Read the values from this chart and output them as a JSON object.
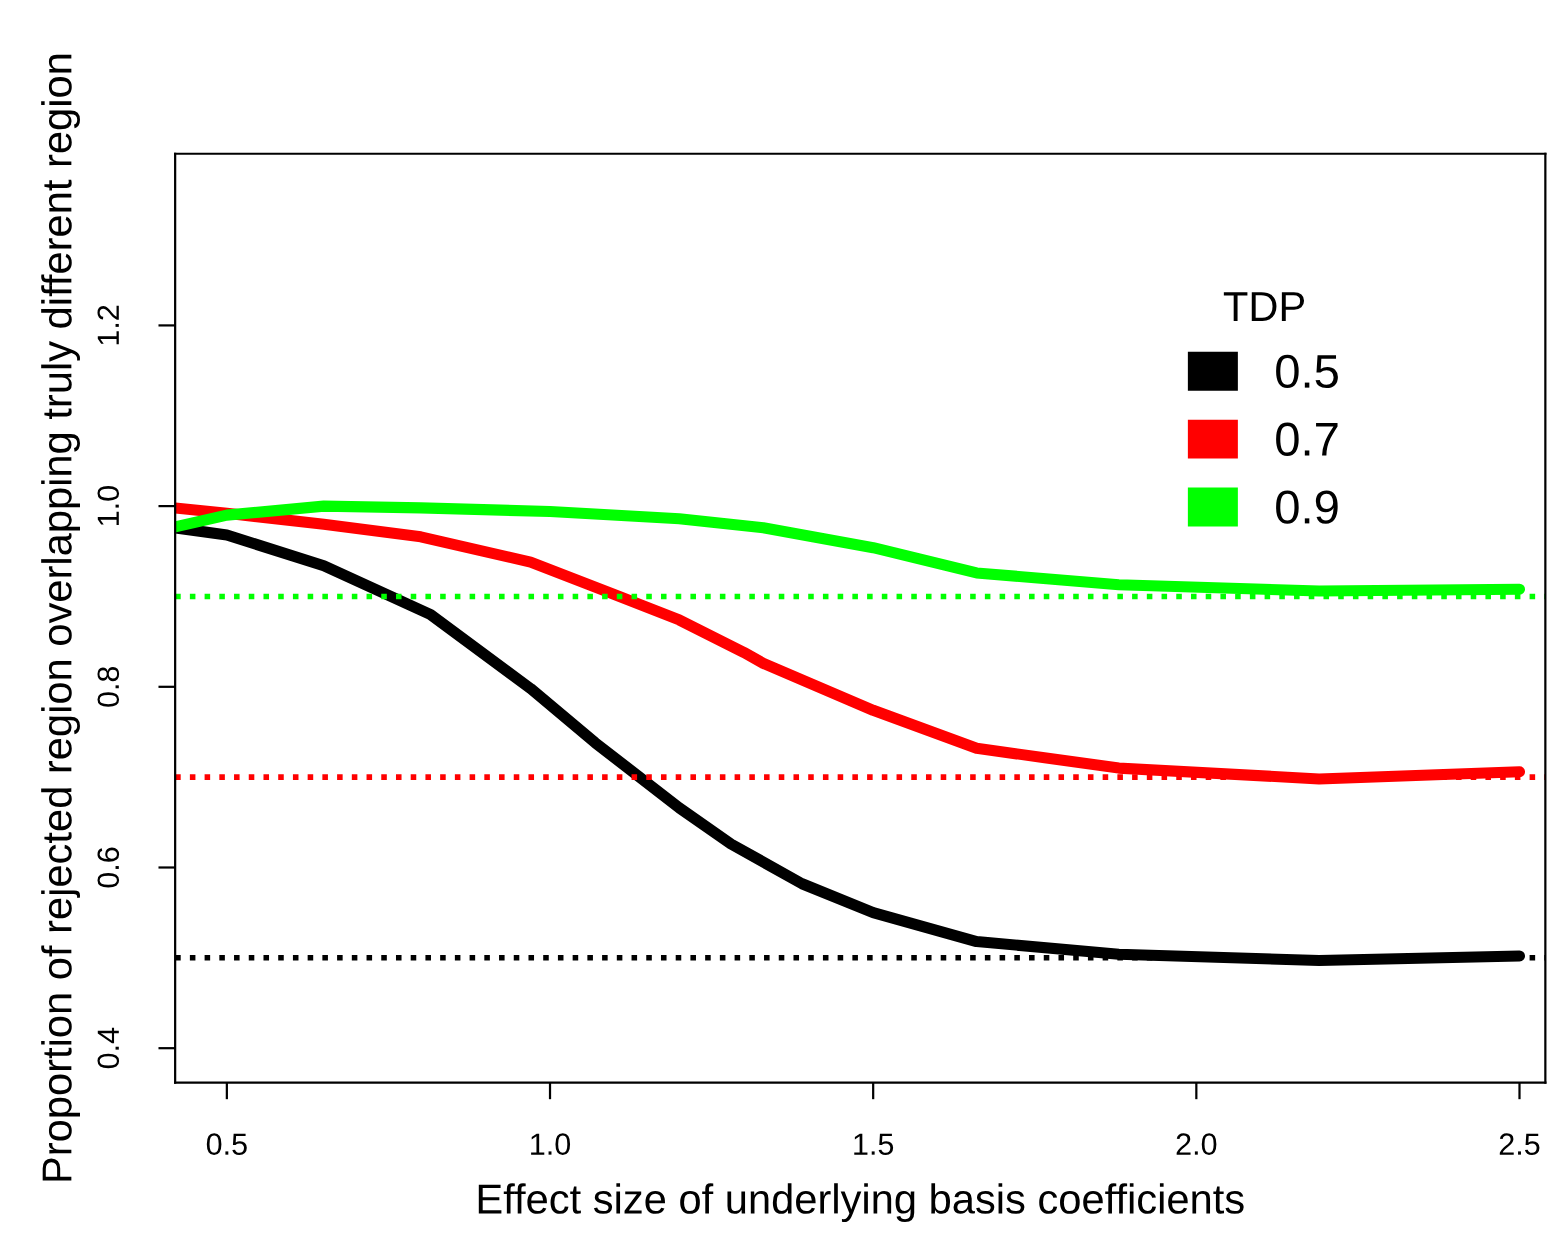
{
  "chart_data": {
    "type": "line",
    "xlabel": "Effect size of underlying basis coefficients",
    "ylabel": "Proportion of rejected region overlapping truly different region",
    "legend_title": "TDP",
    "legend": "top right",
    "grid": false,
    "line_style": "solid",
    "marker": "none",
    "xlim": [
      0.42,
      2.54
    ],
    "ylim": [
      0.362,
      1.39
    ],
    "xticks": [
      {
        "value": 0.5,
        "label": "0.5"
      },
      {
        "value": 1.0,
        "label": "1.0"
      },
      {
        "value": 1.5,
        "label": "1.5"
      },
      {
        "value": 2.0,
        "label": "2.0"
      },
      {
        "value": 2.5,
        "label": "2.5"
      }
    ],
    "yticks": [
      {
        "value": 0.4,
        "label": "0.4"
      },
      {
        "value": 0.6,
        "label": "0.6"
      },
      {
        "value": 0.8,
        "label": "0.8"
      },
      {
        "value": 1.0,
        "label": "1.0"
      },
      {
        "value": 1.2,
        "label": "1.2"
      }
    ],
    "series": [
      {
        "name": "0.5",
        "color": "#000000",
        "x": [
          0.42,
          0.5,
          0.65,
          0.815,
          0.97,
          1.07,
          1.2,
          1.28,
          1.39,
          1.5,
          1.66,
          1.88,
          2.19,
          2.5
        ],
        "values": [
          0.976,
          0.968,
          0.934,
          0.88,
          0.798,
          0.738,
          0.666,
          0.626,
          0.582,
          0.55,
          0.518,
          0.504,
          0.497,
          0.502
        ]
      },
      {
        "name": "0.7",
        "color": "#ff0000",
        "x": [
          0.42,
          0.5,
          0.65,
          0.8,
          0.97,
          1.1,
          1.2,
          1.3,
          1.33,
          1.5,
          1.66,
          1.88,
          2.19,
          2.5
        ],
        "values": [
          0.998,
          0.992,
          0.98,
          0.966,
          0.938,
          0.902,
          0.874,
          0.838,
          0.826,
          0.774,
          0.732,
          0.71,
          0.698,
          0.706
        ]
      },
      {
        "name": "0.9",
        "color": "#00ff00",
        "x": [
          0.42,
          0.5,
          0.65,
          0.8,
          1.0,
          1.2,
          1.33,
          1.5,
          1.66,
          1.88,
          2.19,
          2.5
        ],
        "values": [
          0.977,
          0.99,
          1.0,
          0.998,
          0.994,
          0.986,
          0.976,
          0.954,
          0.926,
          0.913,
          0.906,
          0.908
        ]
      }
    ],
    "ref_lines": [
      {
        "axis": "y",
        "value": 0.5,
        "color": "#000000",
        "line_style": "dotted"
      },
      {
        "axis": "y",
        "value": 0.7,
        "color": "#ff0000",
        "line_style": "dotted"
      },
      {
        "axis": "y",
        "value": 0.9,
        "color": "#00ff00",
        "line_style": "dotted"
      }
    ]
  }
}
